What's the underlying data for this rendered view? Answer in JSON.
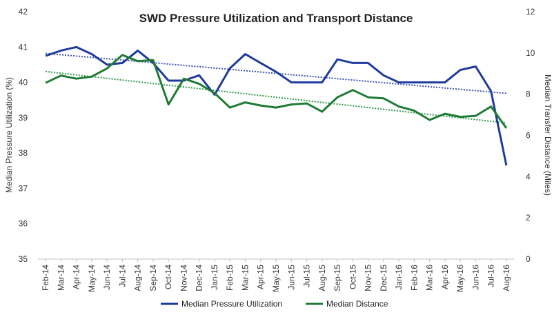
{
  "chart_data": {
    "type": "line",
    "title": "SWD Pressure Utilization and Transport Distance",
    "xlabel": "",
    "ylabel_left": "Median Pressure Utilization (%)",
    "ylabel_right": "Median Transfer Distance (Miles)",
    "ylim_left": [
      35,
      42
    ],
    "ylim_right": [
      0,
      12
    ],
    "yticks_left": [
      "35",
      "36",
      "37",
      "38",
      "39",
      "40",
      "41",
      "42"
    ],
    "yticks_right": [
      "0",
      "2",
      "4",
      "6",
      "8",
      "10",
      "12"
    ],
    "categories": [
      "Feb-14",
      "Mar-14",
      "Apr-14",
      "May-14",
      "Jun-14",
      "Jul-14",
      "Aug-14",
      "Sep-14",
      "Oct-14",
      "Nov-14",
      "Dec-14",
      "Jan-15",
      "Feb-15",
      "Mar-15",
      "Apr-15",
      "May-15",
      "Jun-15",
      "Jul-15",
      "Aug-15",
      "Sep-15",
      "Oct-15",
      "Nov-15",
      "Dec-15",
      "Jan-16",
      "Feb-16",
      "Mar-16",
      "Apr-16",
      "May-16",
      "Jun-16",
      "Jul-16",
      "Aug-16"
    ],
    "series": [
      {
        "name": "Median Pressure Utilization",
        "axis": "left",
        "color": "#1f3a9e",
        "values": [
          40.75,
          40.9,
          41.0,
          40.8,
          40.5,
          40.55,
          40.9,
          40.55,
          40.05,
          40.05,
          40.2,
          39.65,
          40.4,
          40.8,
          40.55,
          40.3,
          40.0,
          40.0,
          40.0,
          40.65,
          40.55,
          40.55,
          40.2,
          40.0,
          40.0,
          40.0,
          40.0,
          40.35,
          40.45,
          39.75,
          37.65
        ],
        "trendline": {
          "color": "#3a50b8",
          "start": 40.82,
          "end": 39.69
        }
      },
      {
        "name": "Median Distance",
        "axis": "right",
        "color": "#1e7b34",
        "values": [
          8.55,
          8.9,
          8.75,
          8.85,
          9.25,
          9.9,
          9.6,
          9.65,
          7.5,
          8.75,
          8.5,
          8.05,
          7.35,
          7.6,
          7.45,
          7.35,
          7.5,
          7.55,
          7.15,
          7.85,
          8.2,
          7.85,
          7.8,
          7.4,
          7.2,
          6.75,
          7.05,
          6.9,
          6.95,
          7.4,
          6.35
        ],
        "trendline": {
          "color": "#2e9a48",
          "start": 9.1,
          "end": 6.6
        }
      }
    ],
    "grid": false,
    "legend": "bottom"
  }
}
